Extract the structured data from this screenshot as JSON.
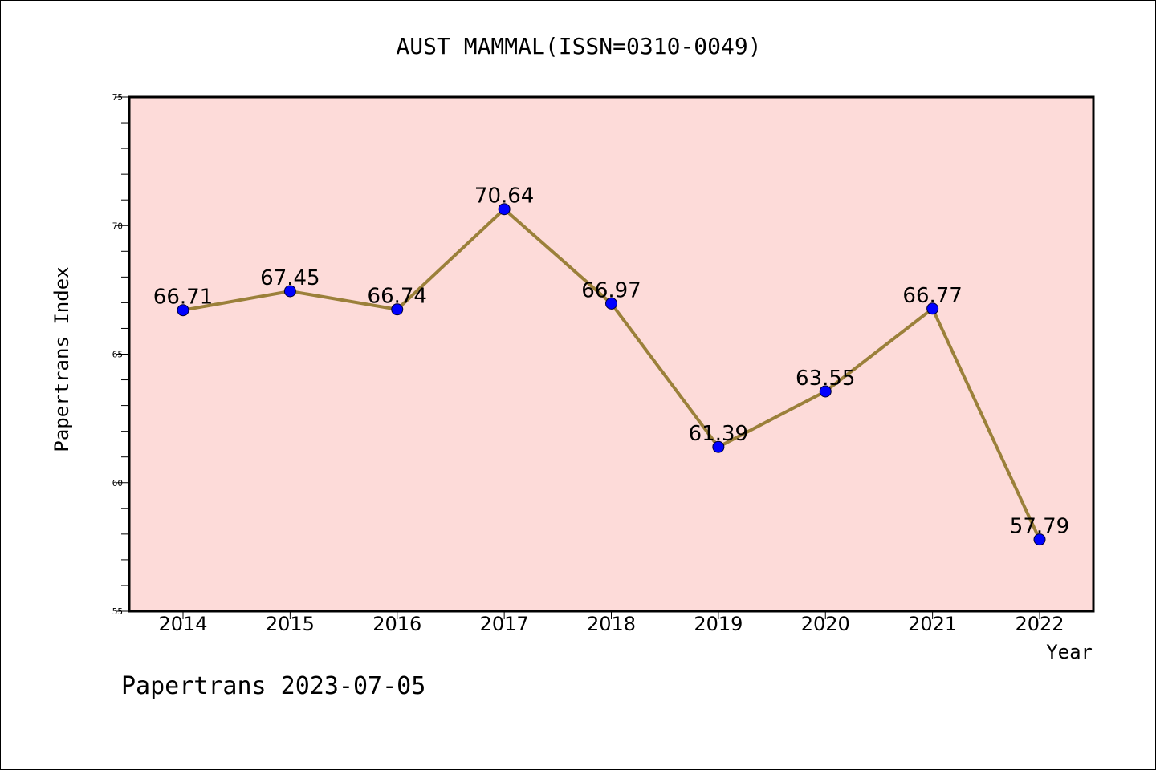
{
  "chart_data": {
    "type": "line",
    "title": "AUST MAMMAL(ISSN=0310-0049)",
    "xlabel": "Year",
    "ylabel": "Papertrans Index",
    "categories": [
      "2014",
      "2015",
      "2016",
      "2017",
      "2018",
      "2019",
      "2020",
      "2021",
      "2022"
    ],
    "series": [
      {
        "values": [
          66.71,
          67.45,
          66.74,
          70.64,
          66.97,
          61.39,
          63.55,
          66.77,
          57.79
        ],
        "labels": [
          "66.71",
          "67.45",
          "66.74",
          "70.64",
          "66.97",
          "61.39",
          "63.55",
          "66.77",
          "57.79"
        ]
      }
    ],
    "ylim": [
      55,
      75
    ],
    "y_ticks": [
      "55",
      "60",
      "65",
      "70",
      "75"
    ],
    "grid": false,
    "colors": {
      "plot_background": "#FDDBD9",
      "line": "#9B803A",
      "marker": "#0000FF"
    }
  },
  "footer": "Papertrans 2023-07-05"
}
